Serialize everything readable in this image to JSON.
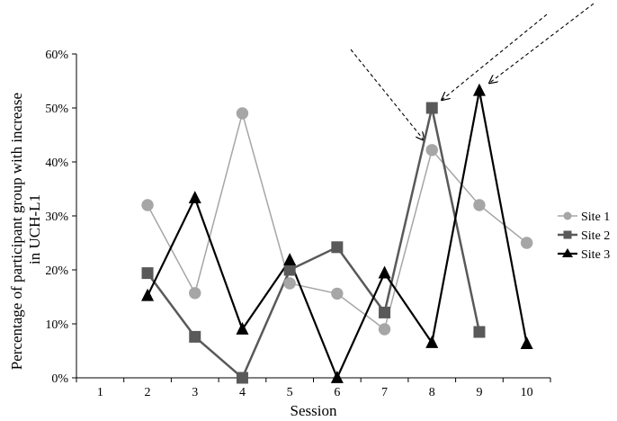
{
  "chart_data": {
    "type": "line",
    "title": "",
    "xlabel": "Session",
    "ylabel_lines": [
      "Percentage of participant group with increase",
      "in UCH-L1"
    ],
    "categories": [
      "1",
      "2",
      "3",
      "4",
      "5",
      "6",
      "7",
      "8",
      "9",
      "10"
    ],
    "y_ticks": [
      "0%",
      "10%",
      "20%",
      "30%",
      "40%",
      "50%",
      "60%"
    ],
    "ylim": [
      0,
      60
    ],
    "grid": false,
    "legend_position": "right",
    "series": [
      {
        "name": "Site 1",
        "marker": "circle",
        "color": "#a6a6a6",
        "values": [
          null,
          32,
          15.7,
          49,
          17.5,
          15.6,
          9,
          42.2,
          32,
          25
        ]
      },
      {
        "name": "Site 2",
        "marker": "square",
        "color": "#595959",
        "values": [
          null,
          19.4,
          7.6,
          0,
          20,
          24.2,
          12.1,
          50,
          8.5,
          null
        ]
      },
      {
        "name": "Site 3",
        "marker": "triangle",
        "color": "#000000",
        "values": [
          null,
          15.2,
          33.3,
          9,
          21.8,
          0,
          19.4,
          6.5,
          53.2,
          6.3
        ]
      }
    ],
    "annotations": [
      {
        "type": "dashed-arrow",
        "target_series": "Site 1",
        "target_category": "8"
      },
      {
        "type": "dashed-arrow",
        "target_series": "Site 2",
        "target_category": "8"
      },
      {
        "type": "dashed-arrow",
        "target_series": "Site 3",
        "target_category": "9"
      }
    ]
  }
}
